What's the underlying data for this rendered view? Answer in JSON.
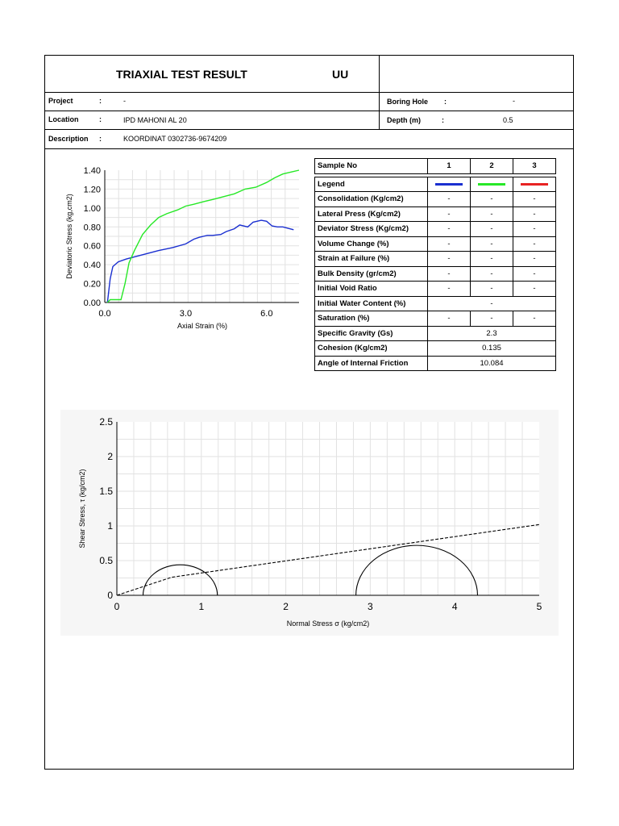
{
  "header": {
    "title": "TRIAXIAL TEST RESULT",
    "test_type": "UU"
  },
  "info": {
    "project_label": "Project",
    "project_value": "-",
    "boring_label": "Boring Hole",
    "boring_value": "-",
    "location_label": "Location",
    "location_value": "IPD MAHONI AL 20",
    "depth_label": "Depth (m)",
    "depth_value": "0.5",
    "description_label": "Description",
    "description_value": "KOORDINAT 0302736-9674209",
    "colon": ":"
  },
  "table": {
    "sample_label": "Sample No",
    "samples": [
      "1",
      "2",
      "3"
    ],
    "legend_label": "Legend",
    "legend_colors": [
      "#1a2fd0",
      "#27e827",
      "#e82222"
    ],
    "rows": [
      {
        "label": "Consolidation (Kg/cm2)",
        "values": [
          "-",
          "-",
          "-"
        ]
      },
      {
        "label": "Lateral Press (Kg/cm2)",
        "values": [
          "-",
          "-",
          "-"
        ]
      },
      {
        "label": "Deviator Stress (Kg/cm2)",
        "values": [
          "-",
          "-",
          "-"
        ]
      },
      {
        "label": "Volume Change (%)",
        "values": [
          "-",
          "-",
          "-"
        ]
      },
      {
        "label": "Strain at Failure (%)",
        "values": [
          "-",
          "-",
          "-"
        ]
      },
      {
        "label": "Bulk Density (gr/cm2)",
        "values": [
          "-",
          "-",
          "-"
        ]
      },
      {
        "label": "Initial Void Ratio",
        "values": [
          "-",
          "-",
          "-"
        ]
      }
    ],
    "water_content_label": "Initial Water Content (%)",
    "water_content_value": "-",
    "saturation_label": "Saturation (%)",
    "saturation_values": [
      "-",
      "-",
      "-"
    ],
    "gs_label": "Specific Gravity (Gs)",
    "gs_value": "2.3",
    "cohesion_label": "Cohesion (Kg/cm2)",
    "cohesion_value": "0.135",
    "friction_label": "Angle of Internal Friction",
    "friction_value": "10.084"
  },
  "chart_data": [
    {
      "type": "line",
      "xlabel": "Axial Strain (%)",
      "ylabel": "Deviatoric Stress (kg,cm2)",
      "xlim": [
        0,
        7.2
      ],
      "ylim": [
        0,
        1.4
      ],
      "xticks": [
        "0.0",
        "3.0",
        "6.0"
      ],
      "xtick_values": [
        0,
        3,
        6
      ],
      "yticks": [
        "0.00",
        "0.20",
        "0.40",
        "0.60",
        "0.80",
        "1.00",
        "1.20",
        "1.40"
      ],
      "ytick_values": [
        0,
        0.2,
        0.4,
        0.6,
        0.8,
        1.0,
        1.2,
        1.4
      ],
      "grid": true,
      "series": [
        {
          "color": "#1a2fd0",
          "x": [
            0.1,
            0.2,
            0.3,
            0.5,
            0.8,
            1.2,
            1.6,
            2.0,
            2.5,
            3.0,
            3.3,
            3.5,
            3.8,
            4.0,
            4.3,
            4.5,
            4.8,
            5.0,
            5.3,
            5.5,
            5.8,
            6.0,
            6.2,
            6.4,
            6.6,
            7.0
          ],
          "y": [
            0.0,
            0.25,
            0.38,
            0.43,
            0.46,
            0.49,
            0.52,
            0.55,
            0.58,
            0.62,
            0.67,
            0.69,
            0.71,
            0.71,
            0.72,
            0.75,
            0.78,
            0.82,
            0.8,
            0.85,
            0.87,
            0.86,
            0.81,
            0.8,
            0.8,
            0.77
          ]
        },
        {
          "color": "#27e827",
          "x": [
            0.1,
            0.2,
            0.4,
            0.6,
            0.75,
            0.9,
            1.1,
            1.4,
            1.7,
            2.0,
            2.3,
            2.7,
            3.0,
            3.3,
            3.7,
            4.0,
            4.4,
            4.8,
            5.2,
            5.6,
            6.0,
            6.3,
            6.6,
            6.9,
            7.2
          ],
          "y": [
            0.0,
            0.03,
            0.03,
            0.03,
            0.2,
            0.42,
            0.55,
            0.72,
            0.82,
            0.9,
            0.94,
            0.98,
            1.02,
            1.04,
            1.07,
            1.09,
            1.12,
            1.15,
            1.2,
            1.22,
            1.27,
            1.32,
            1.36,
            1.38,
            1.4
          ]
        }
      ]
    },
    {
      "type": "line",
      "xlabel": "Normal Stress σ (kg/cm2)",
      "ylabel": "Shear Stress, τ (kg/cm2)",
      "xlim": [
        0,
        5
      ],
      "ylim": [
        0,
        2.5
      ],
      "xticks": [
        "0",
        "1",
        "2",
        "3",
        "4",
        "5"
      ],
      "xtick_values": [
        0,
        1,
        2,
        3,
        4,
        5
      ],
      "yticks": [
        "0",
        "0.5",
        "1",
        "1.5",
        "2",
        "2.5"
      ],
      "ytick_values": [
        0,
        0.5,
        1,
        1.5,
        2,
        2.5
      ],
      "grid": true,
      "circles": [
        {
          "center": 0.75,
          "radius": 0.44
        },
        {
          "center": 3.55,
          "radius": 0.72
        }
      ],
      "envelope": {
        "x": [
          0,
          0.65,
          5
        ],
        "y": [
          0,
          0.26,
          1.02
        ]
      }
    }
  ]
}
